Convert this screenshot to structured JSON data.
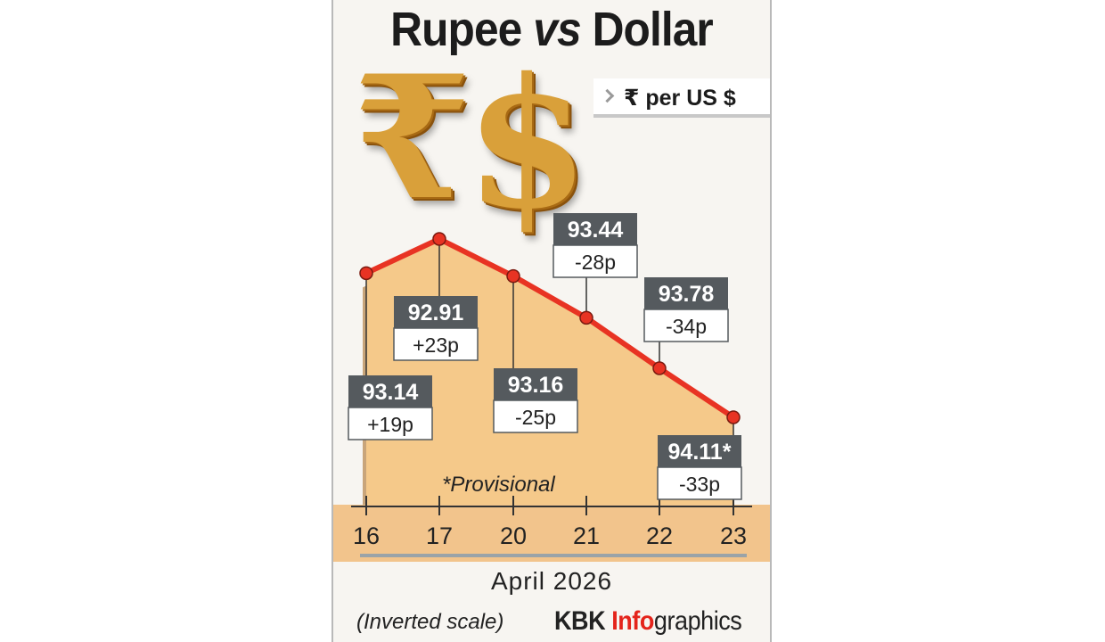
{
  "header": {
    "title_part1": "Rupee ",
    "title_vs": "vs",
    "title_part2": " Dollar",
    "unit_label": "₹ per US $"
  },
  "icons": {
    "rupee_glyph": "₹",
    "dollar_glyph": "$"
  },
  "footer": {
    "note": "*Provisional",
    "scale_note": "(Inverted scale)",
    "credit_part1": "KBK ",
    "credit_accent": "Info",
    "credit_part2": "graphics"
  },
  "colors": {
    "line": "#e83323",
    "area": "#f5c98a",
    "shadow": "#c9a57a",
    "box_header": "#555a5e",
    "accent": "#e4241b"
  },
  "chart_data": {
    "type": "line",
    "title": "Rupee vs Dollar",
    "ylabel": "₹ per US $",
    "xlabel": "April 2026",
    "y_inverted": true,
    "categories": [
      "16",
      "17",
      "20",
      "21",
      "22",
      "23"
    ],
    "series": [
      {
        "values": [
          93.14,
          92.91,
          93.16,
          93.44,
          93.78,
          94.11
        ],
        "value_labels": [
          "93.14",
          "92.91",
          "93.16",
          "93.44",
          "93.78",
          "94.11*"
        ],
        "changes": [
          "+19p",
          "+23p",
          "-25p",
          "-28p",
          "-34p",
          "-33p"
        ]
      }
    ]
  }
}
